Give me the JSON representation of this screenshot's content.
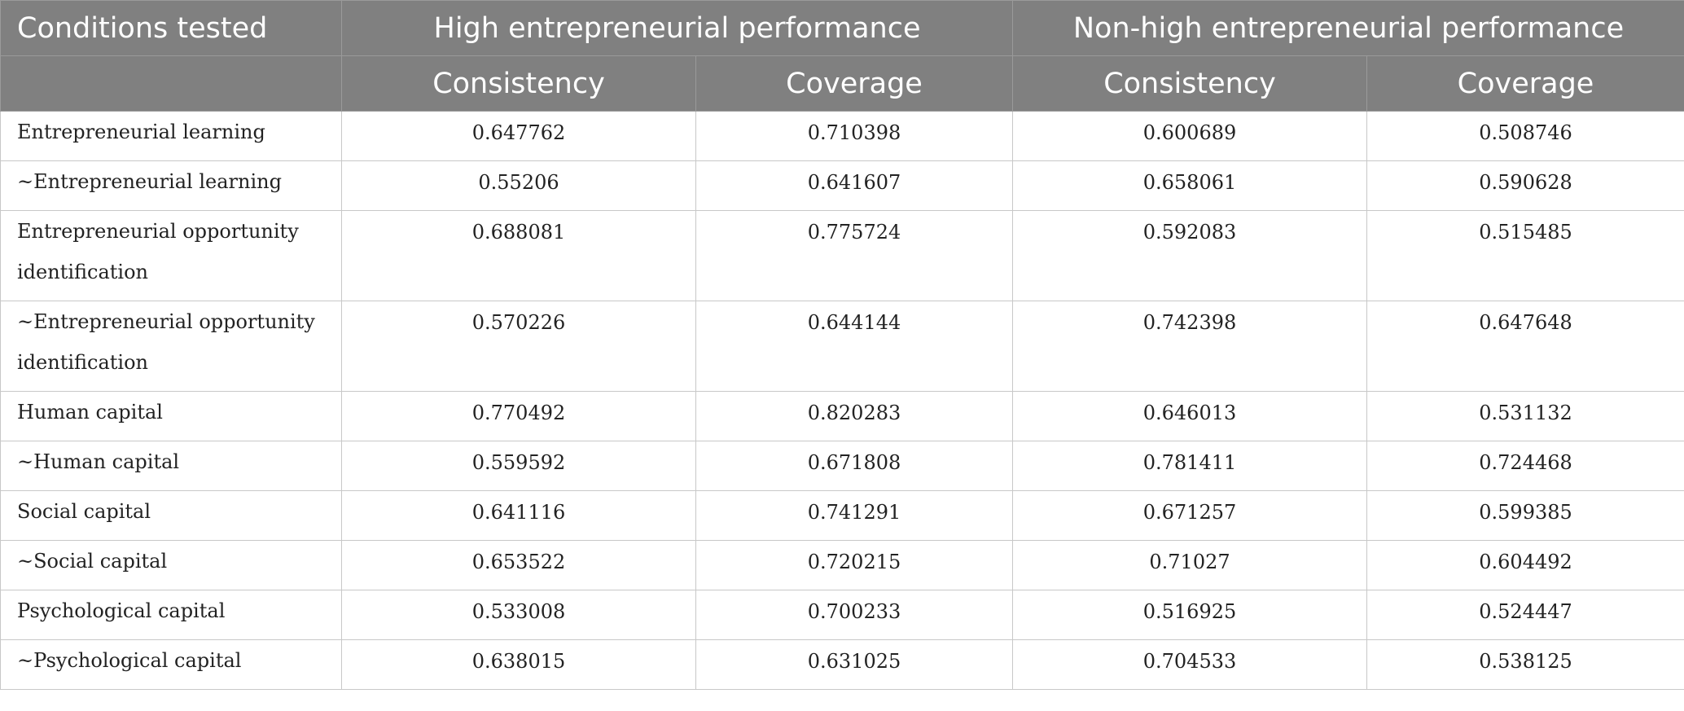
{
  "table": {
    "header": {
      "conditions_label": "Conditions tested",
      "group_high": "High entrepreneurial performance",
      "group_nonhigh": "Non-high entrepreneurial performance",
      "consistency": "Consistency",
      "coverage": "Coverage"
    },
    "rows": [
      {
        "condition": "Entrepreneurial learning",
        "high_consistency": "0.647762",
        "high_coverage": "0.710398",
        "nonhigh_consistency": "0.600689",
        "nonhigh_coverage": "0.508746"
      },
      {
        "condition": "~Entrepreneurial learning",
        "high_consistency": "0.55206",
        "high_coverage": "0.641607",
        "nonhigh_consistency": "0.658061",
        "nonhigh_coverage": "0.590628"
      },
      {
        "condition": "Entrepreneurial opportunity identification",
        "high_consistency": "0.688081",
        "high_coverage": "0.775724",
        "nonhigh_consistency": "0.592083",
        "nonhigh_coverage": "0.515485"
      },
      {
        "condition": "~Entrepreneurial opportunity identification",
        "high_consistency": "0.570226",
        "high_coverage": "0.644144",
        "nonhigh_consistency": "0.742398",
        "nonhigh_coverage": "0.647648"
      },
      {
        "condition": "Human capital",
        "high_consistency": "0.770492",
        "high_coverage": "0.820283",
        "nonhigh_consistency": "0.646013",
        "nonhigh_coverage": "0.531132"
      },
      {
        "condition": "~Human capital",
        "high_consistency": "0.559592",
        "high_coverage": "0.671808",
        "nonhigh_consistency": "0.781411",
        "nonhigh_coverage": "0.724468"
      },
      {
        "condition": "Social capital",
        "high_consistency": "0.641116",
        "high_coverage": "0.741291",
        "nonhigh_consistency": "0.671257",
        "nonhigh_coverage": "0.599385"
      },
      {
        "condition": "~Social capital",
        "high_consistency": "0.653522",
        "high_coverage": "0.720215",
        "nonhigh_consistency": "0.71027",
        "nonhigh_coverage": "0.604492"
      },
      {
        "condition": "Psychological capital",
        "high_consistency": "0.533008",
        "high_coverage": "0.700233",
        "nonhigh_consistency": "0.516925",
        "nonhigh_coverage": "0.524447"
      },
      {
        "condition": "~Psychological capital",
        "high_consistency": "0.638015",
        "high_coverage": "0.631025",
        "nonhigh_consistency": "0.704533",
        "nonhigh_coverage": "0.538125"
      }
    ]
  },
  "colors": {
    "header_bg": "#808080",
    "header_text": "#ffffff",
    "grid": "#c8c8c8",
    "body_text": "#222222"
  }
}
